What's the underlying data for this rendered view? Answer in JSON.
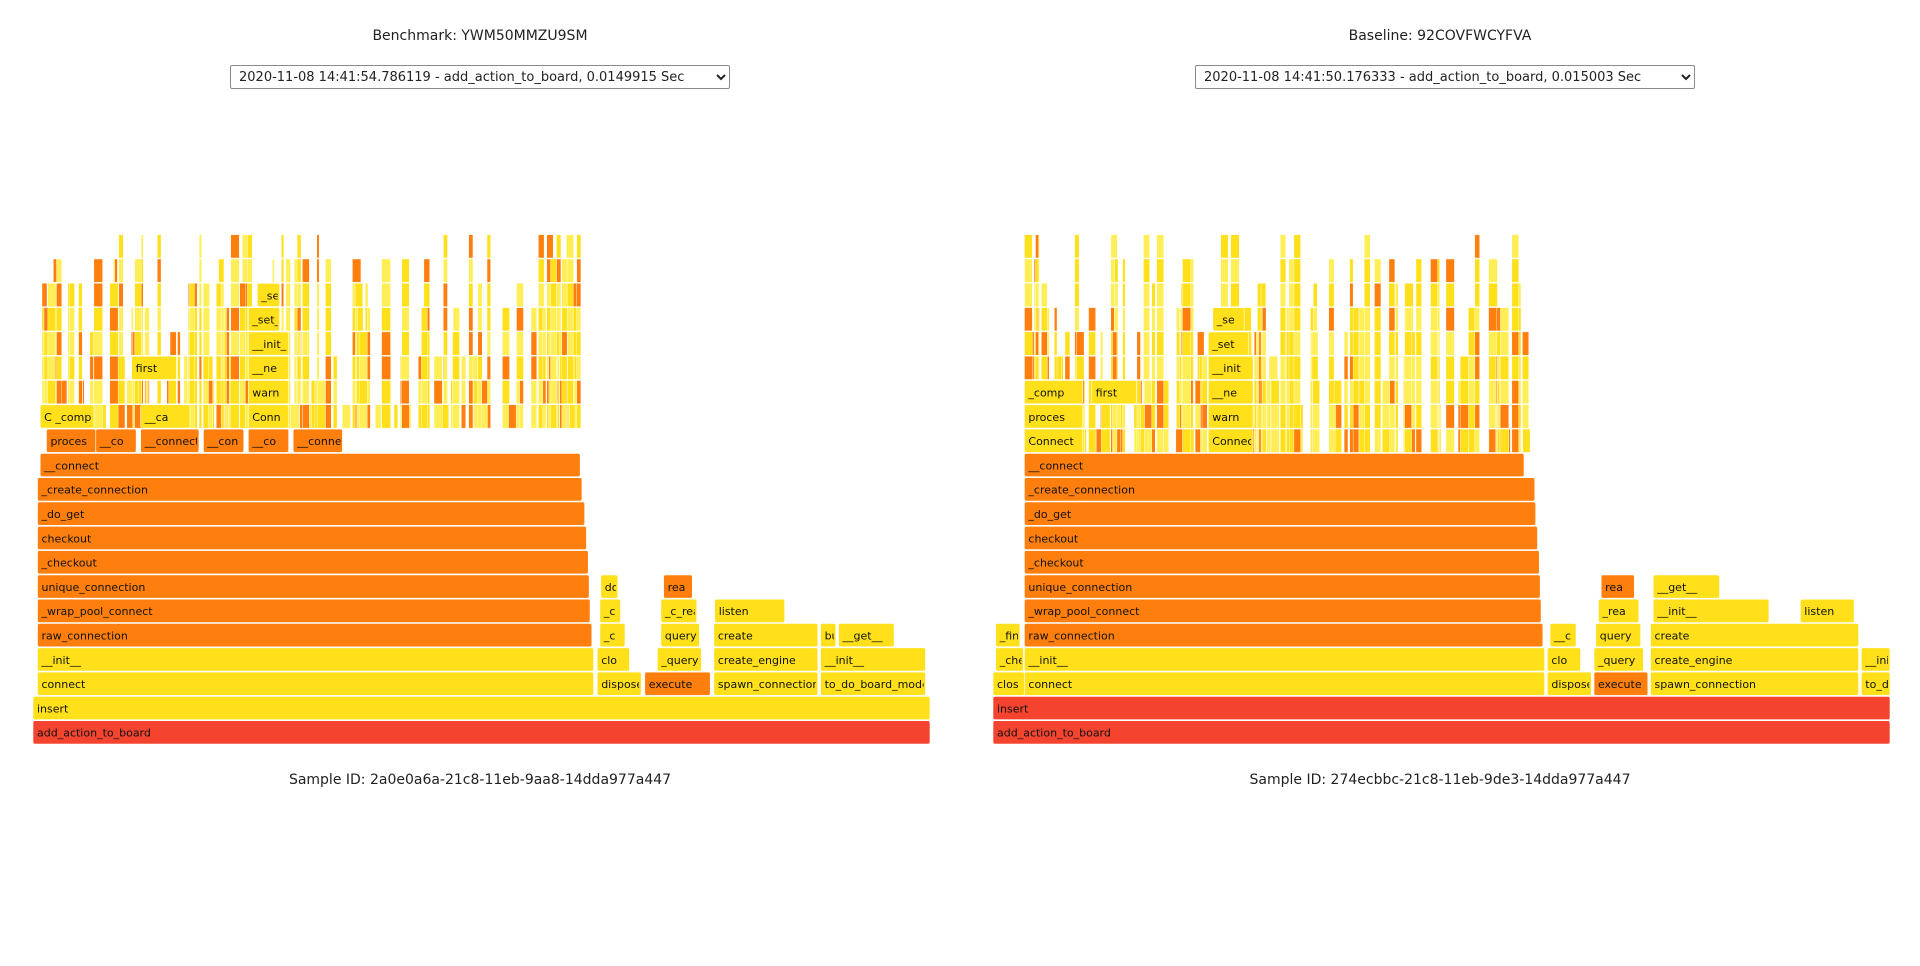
{
  "colors": {
    "root": "#f4442f",
    "orange": "#ff7f0e",
    "yellow": "#ffe01a",
    "lightyellow": "#ffee55",
    "stroke": "#ffffff"
  },
  "panels": [
    {
      "id": "benchmark",
      "title": "Benchmark: YWM50MMZU9SM",
      "select_value": "2020-11-08 14:41:54.786119 - add_action_to_board, 0.0149915 Sec",
      "sample_id": "Sample ID: 2a0e0a6a-21c8-11eb-9aa8-14dda977a447",
      "frames": [
        {
          "name": "add_action_to_board",
          "depth": 0,
          "start": 0.0,
          "end": 1.0,
          "color": "root"
        },
        {
          "name": "insert",
          "depth": 1,
          "start": 0.0,
          "end": 1.0,
          "color": "yellow"
        },
        {
          "name": "connect",
          "depth": 2,
          "start": 0.005,
          "end": 0.625,
          "color": "yellow"
        },
        {
          "name": "dispose",
          "depth": 2,
          "start": 0.629,
          "end": 0.678,
          "color": "yellow"
        },
        {
          "name": "execute",
          "depth": 2,
          "start": 0.682,
          "end": 0.755,
          "color": "orange"
        },
        {
          "name": "spawn_connection",
          "depth": 2,
          "start": 0.759,
          "end": 0.875,
          "color": "yellow"
        },
        {
          "name": "to_do_board_model",
          "depth": 2,
          "start": 0.878,
          "end": 0.995,
          "color": "yellow"
        },
        {
          "name": "__init__",
          "depth": 3,
          "start": 0.005,
          "end": 0.625,
          "color": "yellow"
        },
        {
          "name": "clo",
          "depth": 3,
          "start": 0.629,
          "end": 0.665,
          "color": "yellow"
        },
        {
          "name": "_query",
          "depth": 3,
          "start": 0.696,
          "end": 0.745,
          "color": "yellow"
        },
        {
          "name": "create_engine",
          "depth": 3,
          "start": 0.759,
          "end": 0.875,
          "color": "yellow"
        },
        {
          "name": "__init__",
          "depth": 3,
          "start": 0.878,
          "end": 0.995,
          "color": "yellow"
        },
        {
          "name": "raw_connection",
          "depth": 4,
          "start": 0.005,
          "end": 0.623,
          "color": "orange"
        },
        {
          "name": "_c",
          "depth": 4,
          "start": 0.632,
          "end": 0.66,
          "color": "yellow"
        },
        {
          "name": "query",
          "depth": 4,
          "start": 0.7,
          "end": 0.743,
          "color": "yellow"
        },
        {
          "name": "create",
          "depth": 4,
          "start": 0.759,
          "end": 0.875,
          "color": "yellow"
        },
        {
          "name": "bu",
          "depth": 4,
          "start": 0.878,
          "end": 0.895,
          "color": "yellow"
        },
        {
          "name": "__get__",
          "depth": 4,
          "start": 0.898,
          "end": 0.96,
          "color": "yellow"
        },
        {
          "name": "_wrap_pool_connect",
          "depth": 5,
          "start": 0.005,
          "end": 0.621,
          "color": "orange"
        },
        {
          "name": "_c",
          "depth": 5,
          "start": 0.632,
          "end": 0.655,
          "color": "yellow"
        },
        {
          "name": "_c_rea",
          "depth": 5,
          "start": 0.7,
          "end": 0.74,
          "color": "yellow"
        },
        {
          "name": "listen",
          "depth": 5,
          "start": 0.76,
          "end": 0.838,
          "color": "yellow"
        },
        {
          "name": "unique_connection",
          "depth": 6,
          "start": 0.005,
          "end": 0.62,
          "color": "orange"
        },
        {
          "name": "do",
          "depth": 6,
          "start": 0.633,
          "end": 0.652,
          "color": "yellow"
        },
        {
          "name": "rea",
          "depth": 6,
          "start": 0.703,
          "end": 0.735,
          "color": "orange"
        },
        {
          "name": "_checkout",
          "depth": 7,
          "start": 0.005,
          "end": 0.619,
          "color": "orange"
        },
        {
          "name": "checkout",
          "depth": 8,
          "start": 0.005,
          "end": 0.617,
          "color": "orange"
        },
        {
          "name": "_do_get",
          "depth": 9,
          "start": 0.005,
          "end": 0.615,
          "color": "orange"
        },
        {
          "name": "_create_connection",
          "depth": 10,
          "start": 0.005,
          "end": 0.612,
          "color": "orange"
        },
        {
          "name": "__connect",
          "depth": 11,
          "start": 0.008,
          "end": 0.61,
          "color": "orange"
        },
        {
          "name": "proces",
          "depth": 12,
          "start": 0.015,
          "end": 0.07,
          "color": "orange"
        },
        {
          "name": "__co",
          "depth": 12,
          "start": 0.07,
          "end": 0.115,
          "color": "orange"
        },
        {
          "name": "__connect",
          "depth": 12,
          "start": 0.12,
          "end": 0.185,
          "color": "orange"
        },
        {
          "name": "__con",
          "depth": 12,
          "start": 0.19,
          "end": 0.235,
          "color": "orange"
        },
        {
          "name": "__co",
          "depth": 12,
          "start": 0.24,
          "end": 0.285,
          "color": "orange"
        },
        {
          "name": "__connect",
          "depth": 12,
          "start": 0.29,
          "end": 0.345,
          "color": "orange"
        },
        {
          "name": "C _comp",
          "depth": 13,
          "start": 0.008,
          "end": 0.068,
          "color": "yellow"
        },
        {
          "name": "__ca",
          "depth": 13,
          "start": 0.12,
          "end": 0.175,
          "color": "yellow"
        },
        {
          "name": "Conn",
          "depth": 13,
          "start": 0.24,
          "end": 0.285,
          "color": "yellow"
        },
        {
          "name": "warn",
          "depth": 14,
          "start": 0.24,
          "end": 0.285,
          "color": "yellow"
        },
        {
          "name": "first",
          "depth": 15,
          "start": 0.11,
          "end": 0.16,
          "color": "yellow"
        },
        {
          "name": "__ne",
          "depth": 15,
          "start": 0.24,
          "end": 0.285,
          "color": "yellow"
        },
        {
          "name": "__init_",
          "depth": 16,
          "start": 0.24,
          "end": 0.285,
          "color": "yellow"
        },
        {
          "name": "_set_",
          "depth": 17,
          "start": 0.24,
          "end": 0.275,
          "color": "yellow"
        },
        {
          "name": "_se",
          "depth": 18,
          "start": 0.25,
          "end": 0.275,
          "color": "yellow"
        }
      ],
      "slivers": {
        "start": 0.01,
        "end": 0.615,
        "min_depth": 13,
        "max_depth": 21,
        "count": 160,
        "seed": 7
      }
    },
    {
      "id": "baseline",
      "title": "Baseline: 92COVFWCYFVA",
      "select_value": "2020-11-08 14:41:50.176333 - add_action_to_board, 0.015003 Sec",
      "sample_id": "Sample ID: 274ecbbc-21c8-11eb-9de3-14dda977a447",
      "frames": [
        {
          "name": "add_action_to_board",
          "depth": 0,
          "start": 0.0,
          "end": 1.0,
          "color": "root"
        },
        {
          "name": "insert",
          "depth": 1,
          "start": 0.0,
          "end": 1.0,
          "color": "root"
        },
        {
          "name": "clos",
          "depth": 2,
          "start": 0.0,
          "end": 0.035,
          "color": "yellow"
        },
        {
          "name": "connect",
          "depth": 2,
          "start": 0.035,
          "end": 0.615,
          "color": "yellow"
        },
        {
          "name": "dispose",
          "depth": 2,
          "start": 0.618,
          "end": 0.667,
          "color": "yellow"
        },
        {
          "name": "execute",
          "depth": 2,
          "start": 0.67,
          "end": 0.73,
          "color": "orange"
        },
        {
          "name": "spawn_connection",
          "depth": 2,
          "start": 0.733,
          "end": 0.965,
          "color": "yellow"
        },
        {
          "name": "to_do",
          "depth": 2,
          "start": 0.968,
          "end": 1.0,
          "color": "yellow"
        },
        {
          "name": "_che",
          "depth": 3,
          "start": 0.003,
          "end": 0.034,
          "color": "yellow"
        },
        {
          "name": "__init__",
          "depth": 3,
          "start": 0.035,
          "end": 0.615,
          "color": "yellow"
        },
        {
          "name": "clo",
          "depth": 3,
          "start": 0.618,
          "end": 0.655,
          "color": "yellow"
        },
        {
          "name": "_query",
          "depth": 3,
          "start": 0.67,
          "end": 0.725,
          "color": "yellow"
        },
        {
          "name": "create_engine",
          "depth": 3,
          "start": 0.733,
          "end": 0.965,
          "color": "yellow"
        },
        {
          "name": "__init",
          "depth": 3,
          "start": 0.968,
          "end": 1.0,
          "color": "yellow"
        },
        {
          "name": "_fin",
          "depth": 4,
          "start": 0.003,
          "end": 0.03,
          "color": "yellow"
        },
        {
          "name": "raw_connection",
          "depth": 4,
          "start": 0.035,
          "end": 0.613,
          "color": "orange"
        },
        {
          "name": "__c",
          "depth": 4,
          "start": 0.621,
          "end": 0.65,
          "color": "yellow"
        },
        {
          "name": "query",
          "depth": 4,
          "start": 0.672,
          "end": 0.722,
          "color": "yellow"
        },
        {
          "name": "create",
          "depth": 4,
          "start": 0.733,
          "end": 0.965,
          "color": "yellow"
        },
        {
          "name": "_wrap_pool_connect",
          "depth": 5,
          "start": 0.035,
          "end": 0.611,
          "color": "orange"
        },
        {
          "name": "_rea",
          "depth": 5,
          "start": 0.675,
          "end": 0.72,
          "color": "yellow"
        },
        {
          "name": "__init__",
          "depth": 5,
          "start": 0.736,
          "end": 0.865,
          "color": "yellow"
        },
        {
          "name": "listen",
          "depth": 5,
          "start": 0.9,
          "end": 0.96,
          "color": "yellow"
        },
        {
          "name": "unique_connection",
          "depth": 6,
          "start": 0.035,
          "end": 0.61,
          "color": "orange"
        },
        {
          "name": "rea",
          "depth": 6,
          "start": 0.678,
          "end": 0.715,
          "color": "orange"
        },
        {
          "name": "__get__",
          "depth": 6,
          "start": 0.736,
          "end": 0.81,
          "color": "yellow"
        },
        {
          "name": "_checkout",
          "depth": 7,
          "start": 0.035,
          "end": 0.609,
          "color": "orange"
        },
        {
          "name": "checkout",
          "depth": 8,
          "start": 0.035,
          "end": 0.607,
          "color": "orange"
        },
        {
          "name": "_do_get",
          "depth": 9,
          "start": 0.035,
          "end": 0.605,
          "color": "orange"
        },
        {
          "name": "_create_connection",
          "depth": 10,
          "start": 0.035,
          "end": 0.604,
          "color": "orange"
        },
        {
          "name": "__connect",
          "depth": 11,
          "start": 0.035,
          "end": 0.592,
          "color": "orange"
        },
        {
          "name": "Connect",
          "depth": 12,
          "start": 0.035,
          "end": 0.1,
          "color": "yellow"
        },
        {
          "name": "Connec",
          "depth": 12,
          "start": 0.24,
          "end": 0.29,
          "color": "yellow"
        },
        {
          "name": "proces",
          "depth": 13,
          "start": 0.035,
          "end": 0.1,
          "color": "yellow"
        },
        {
          "name": "warn",
          "depth": 13,
          "start": 0.24,
          "end": 0.29,
          "color": "yellow"
        },
        {
          "name": "_comp",
          "depth": 14,
          "start": 0.035,
          "end": 0.1,
          "color": "yellow"
        },
        {
          "name": "first",
          "depth": 14,
          "start": 0.11,
          "end": 0.16,
          "color": "yellow"
        },
        {
          "name": "__ne",
          "depth": 14,
          "start": 0.24,
          "end": 0.29,
          "color": "yellow"
        },
        {
          "name": "__init",
          "depth": 15,
          "start": 0.24,
          "end": 0.29,
          "color": "yellow"
        },
        {
          "name": "_set",
          "depth": 16,
          "start": 0.24,
          "end": 0.285,
          "color": "yellow"
        },
        {
          "name": "_se",
          "depth": 17,
          "start": 0.245,
          "end": 0.28,
          "color": "yellow"
        }
      ],
      "slivers": {
        "start": 0.035,
        "end": 0.592,
        "min_depth": 12,
        "max_depth": 21,
        "count": 150,
        "seed": 13
      }
    }
  ]
}
